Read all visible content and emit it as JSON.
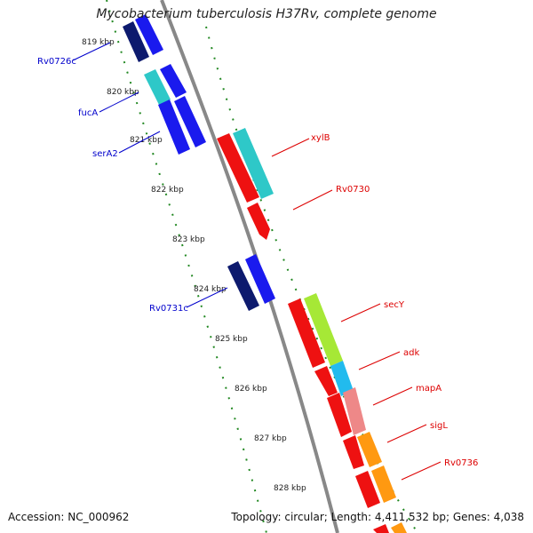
{
  "title": "Mycobacterium tuberculosis H37Rv, complete genome",
  "footer": {
    "accession": "Accession: NC_000962",
    "summary": "Topology: circular; Length: 4,411,532 bp; Genes: 4,038"
  },
  "ticks": [
    "819 kbp",
    "820 kbp",
    "821 kbp",
    "822 kbp",
    "823 kbp",
    "824 kbp",
    "825 kbp",
    "826 kbp",
    "827 kbp",
    "828 kbp"
  ],
  "reverse_labels": [
    "Rv0726c",
    "fucA",
    "serA2",
    "Rv0731c"
  ],
  "forward_labels": [
    "xylB",
    "Rv0730",
    "secY",
    "adk",
    "mapA",
    "sigL",
    "Rv0736"
  ],
  "colors": {
    "backbone": "#888888",
    "ticks": "#228822",
    "reverse_label": "#0000cc",
    "forward_label": "#dd0000",
    "navy": "#0d1a6e",
    "blue": "#1a1aee",
    "cyan": "#2ec8c8",
    "red": "#ee1111",
    "green": "#a6e836",
    "sky": "#22bbee",
    "pink": "#ee8888",
    "orange": "#ff9911"
  }
}
